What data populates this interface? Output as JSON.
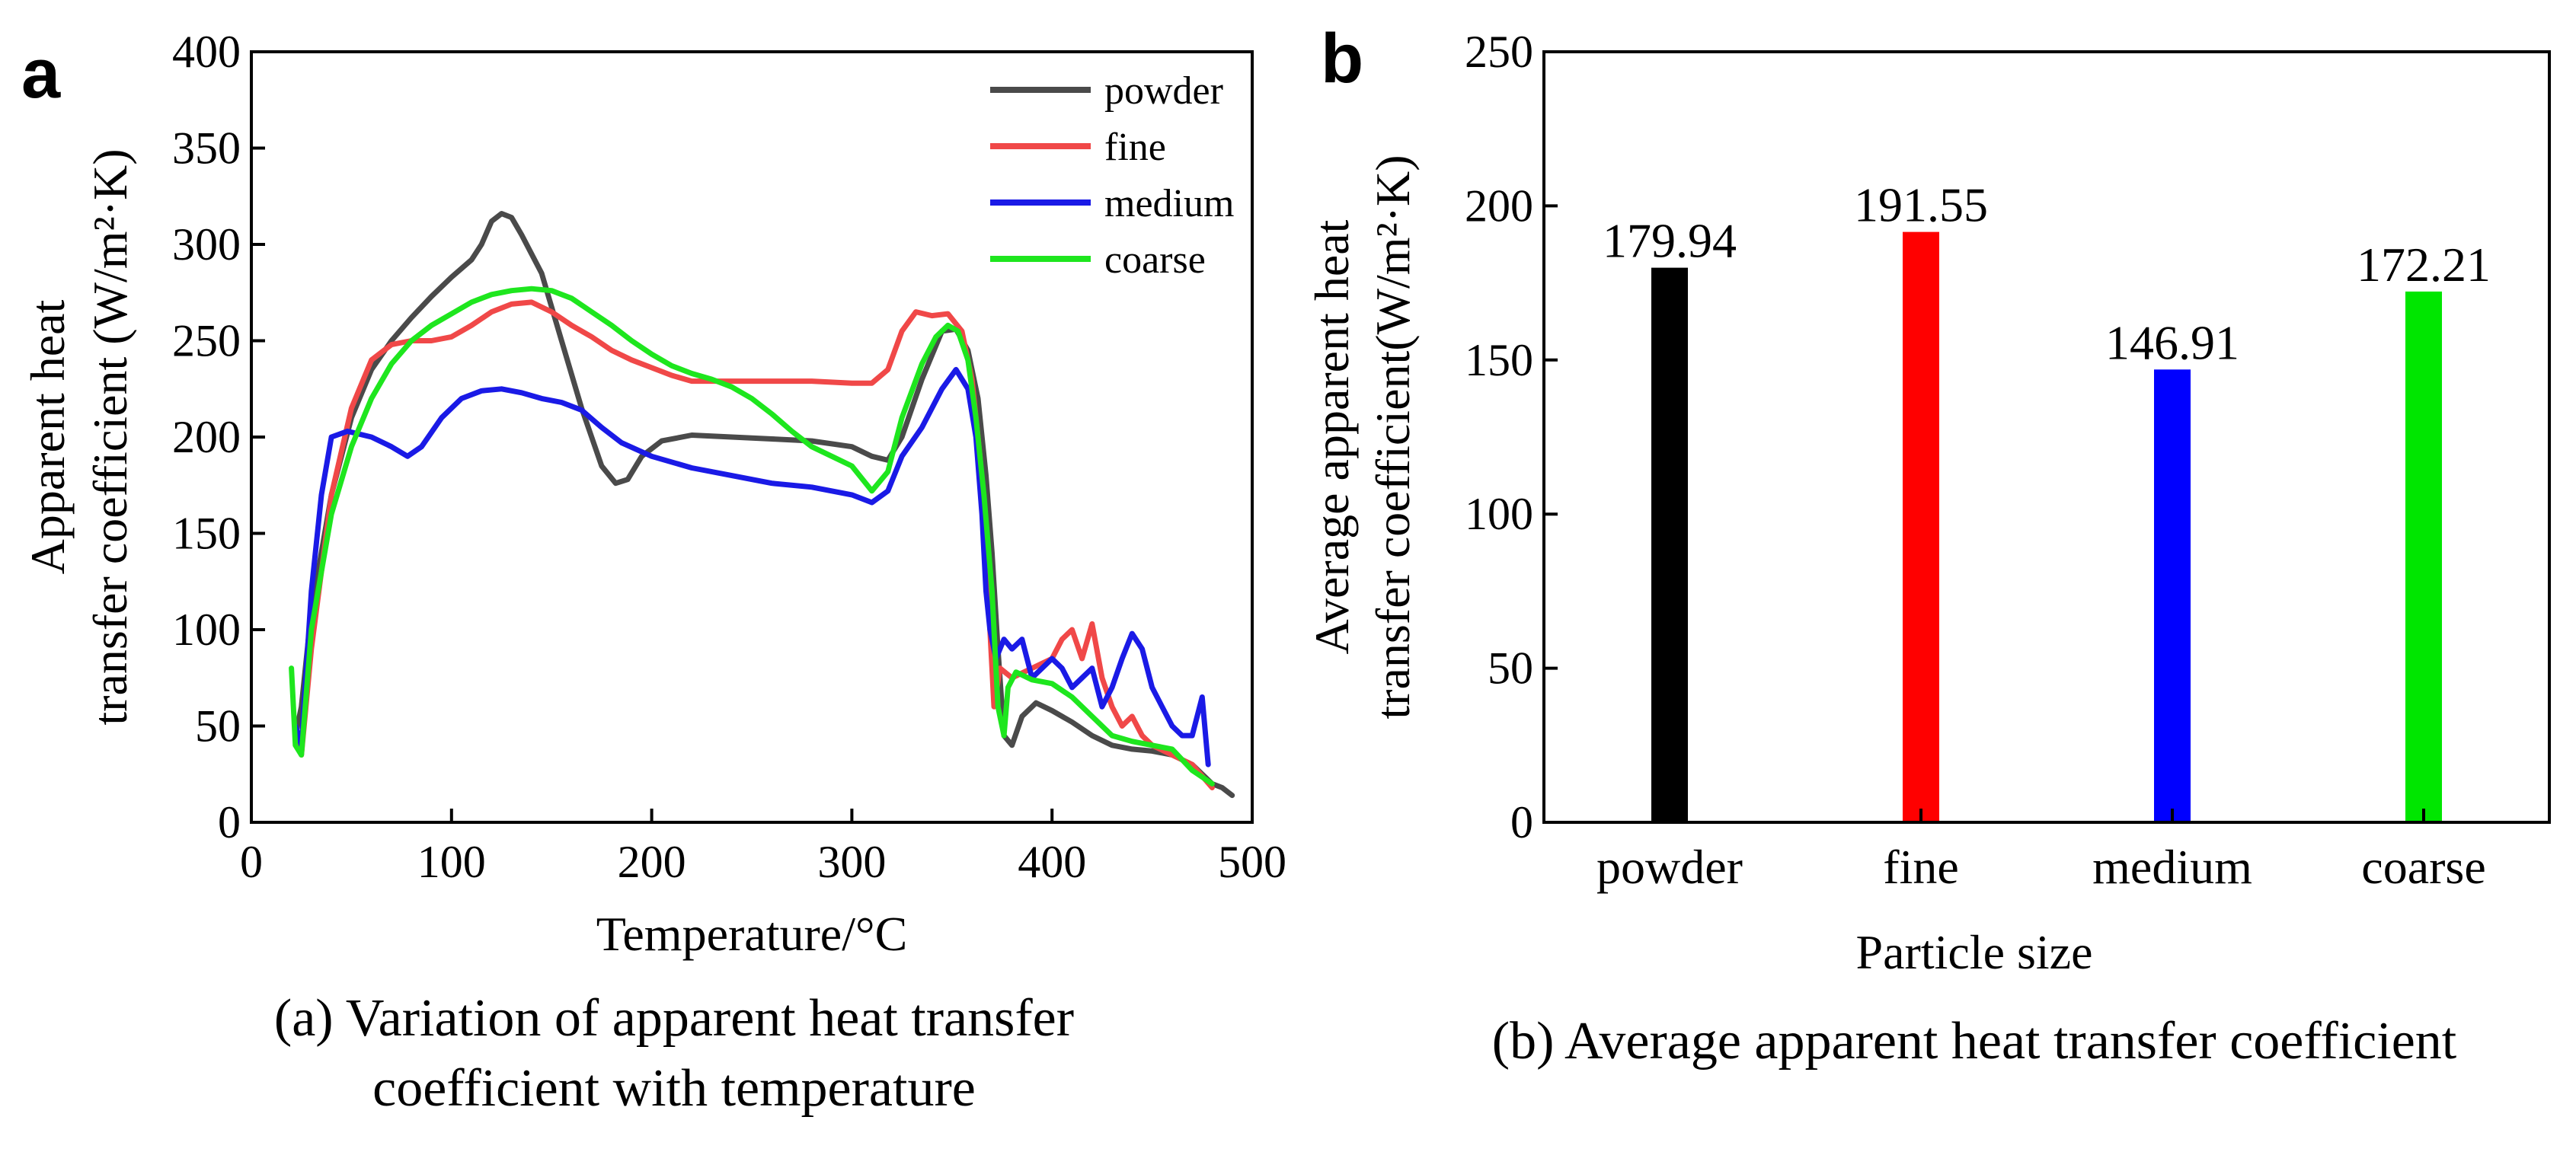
{
  "panel_labels": {
    "a": "a",
    "b": "b"
  },
  "captions": {
    "a_line1": "(a) Variation of apparent heat transfer",
    "a_line2": "coefficient with temperature",
    "b": "(b) Average apparent heat transfer coefficient"
  },
  "colors": {
    "powder": "#4a4a4a",
    "fine": "#f04848",
    "medium": "#1a1ae6",
    "coarse": "#1ee61e",
    "bar_powder": "#000000",
    "bar_fine": "#ff0000",
    "bar_medium": "#0000ff",
    "bar_coarse": "#00e600"
  },
  "chart_data": [
    {
      "type": "line",
      "title": "",
      "xlabel": "Temperature/°C",
      "ylabel_line1": "Apparent heat",
      "ylabel_line2": "transfer coefficient (W/m²·K)",
      "xlim": [
        0,
        500
      ],
      "ylim": [
        0,
        400
      ],
      "xticks": [
        0,
        100,
        200,
        300,
        400,
        500
      ],
      "yticks": [
        0,
        50,
        100,
        150,
        200,
        250,
        300,
        350,
        400
      ],
      "legend_position": "top-right",
      "series": [
        {
          "name": "powder",
          "points": [
            [
              22,
              45
            ],
            [
              25,
              60
            ],
            [
              30,
              110
            ],
            [
              40,
              170
            ],
            [
              50,
              210
            ],
            [
              60,
              235
            ],
            [
              70,
              250
            ],
            [
              80,
              262
            ],
            [
              90,
              273
            ],
            [
              100,
              283
            ],
            [
              110,
              292
            ],
            [
              115,
              300
            ],
            [
              120,
              312
            ],
            [
              125,
              316
            ],
            [
              130,
              314
            ],
            [
              135,
              305
            ],
            [
              145,
              285
            ],
            [
              155,
              250
            ],
            [
              165,
              215
            ],
            [
              175,
              185
            ],
            [
              182,
              176
            ],
            [
              188,
              178
            ],
            [
              195,
              190
            ],
            [
              205,
              198
            ],
            [
              220,
              201
            ],
            [
              240,
              200
            ],
            [
              260,
              199
            ],
            [
              280,
              198
            ],
            [
              300,
              195
            ],
            [
              310,
              190
            ],
            [
              318,
              188
            ],
            [
              325,
              200
            ],
            [
              335,
              230
            ],
            [
              345,
              255
            ],
            [
              352,
              256
            ],
            [
              358,
              245
            ],
            [
              363,
              220
            ],
            [
              367,
              180
            ],
            [
              370,
              140
            ],
            [
              373,
              90
            ],
            [
              376,
              45
            ],
            [
              380,
              40
            ],
            [
              385,
              55
            ],
            [
              392,
              62
            ],
            [
              400,
              58
            ],
            [
              410,
              52
            ],
            [
              420,
              45
            ],
            [
              430,
              40
            ],
            [
              440,
              38
            ],
            [
              450,
              37
            ],
            [
              460,
              35
            ],
            [
              470,
              30
            ],
            [
              480,
              20
            ],
            [
              485,
              18
            ],
            [
              490,
              14
            ]
          ]
        },
        {
          "name": "fine",
          "points": [
            [
              22,
              50
            ],
            [
              25,
              35
            ],
            [
              30,
              90
            ],
            [
              40,
              170
            ],
            [
              50,
              215
            ],
            [
              60,
              240
            ],
            [
              70,
              248
            ],
            [
              80,
              250
            ],
            [
              90,
              250
            ],
            [
              100,
              252
            ],
            [
              110,
              258
            ],
            [
              120,
              265
            ],
            [
              130,
              269
            ],
            [
              140,
              270
            ],
            [
              150,
              265
            ],
            [
              160,
              258
            ],
            [
              170,
              252
            ],
            [
              180,
              245
            ],
            [
              190,
              240
            ],
            [
              200,
              236
            ],
            [
              210,
              232
            ],
            [
              220,
              229
            ],
            [
              240,
              229
            ],
            [
              260,
              229
            ],
            [
              280,
              229
            ],
            [
              300,
              228
            ],
            [
              310,
              228
            ],
            [
              318,
              235
            ],
            [
              325,
              255
            ],
            [
              332,
              265
            ],
            [
              340,
              263
            ],
            [
              348,
              264
            ],
            [
              355,
              255
            ],
            [
              360,
              230
            ],
            [
              364,
              190
            ],
            [
              367,
              150
            ],
            [
              369,
              100
            ],
            [
              371,
              60
            ],
            [
              374,
              80
            ],
            [
              380,
              75
            ],
            [
              390,
              80
            ],
            [
              400,
              85
            ],
            [
              405,
              95
            ],
            [
              410,
              100
            ],
            [
              415,
              85
            ],
            [
              420,
              103
            ],
            [
              425,
              75
            ],
            [
              430,
              60
            ],
            [
              435,
              50
            ],
            [
              440,
              55
            ],
            [
              445,
              45
            ],
            [
              450,
              40
            ],
            [
              460,
              35
            ],
            [
              470,
              30
            ],
            [
              480,
              18
            ]
          ]
        },
        {
          "name": "medium",
          "points": [
            [
              22,
              50
            ],
            [
              25,
              40
            ],
            [
              30,
              120
            ],
            [
              35,
              170
            ],
            [
              40,
              200
            ],
            [
              48,
              203
            ],
            [
              60,
              200
            ],
            [
              70,
              195
            ],
            [
              78,
              190
            ],
            [
              85,
              195
            ],
            [
              95,
              210
            ],
            [
              105,
              220
            ],
            [
              115,
              224
            ],
            [
              125,
              225
            ],
            [
              135,
              223
            ],
            [
              145,
              220
            ],
            [
              155,
              218
            ],
            [
              165,
              214
            ],
            [
              175,
              205
            ],
            [
              185,
              197
            ],
            [
              200,
              190
            ],
            [
              220,
              184
            ],
            [
              240,
              180
            ],
            [
              260,
              176
            ],
            [
              280,
              174
            ],
            [
              300,
              170
            ],
            [
              310,
              166
            ],
            [
              318,
              172
            ],
            [
              325,
              190
            ],
            [
              335,
              205
            ],
            [
              345,
              225
            ],
            [
              352,
              235
            ],
            [
              358,
              225
            ],
            [
              362,
              200
            ],
            [
              365,
              160
            ],
            [
              367,
              120
            ],
            [
              369,
              100
            ],
            [
              372,
              85
            ],
            [
              376,
              95
            ],
            [
              380,
              90
            ],
            [
              385,
              95
            ],
            [
              390,
              75
            ],
            [
              395,
              80
            ],
            [
              400,
              85
            ],
            [
              405,
              80
            ],
            [
              410,
              70
            ],
            [
              415,
              75
            ],
            [
              420,
              80
            ],
            [
              425,
              60
            ],
            [
              430,
              70
            ],
            [
              435,
              85
            ],
            [
              440,
              98
            ],
            [
              445,
              90
            ],
            [
              450,
              70
            ],
            [
              455,
              60
            ],
            [
              460,
              50
            ],
            [
              465,
              45
            ],
            [
              470,
              45
            ],
            [
              475,
              65
            ],
            [
              478,
              30
            ]
          ]
        },
        {
          "name": "coarse",
          "points": [
            [
              20,
              80
            ],
            [
              22,
              40
            ],
            [
              25,
              35
            ],
            [
              30,
              100
            ],
            [
              40,
              160
            ],
            [
              50,
              195
            ],
            [
              60,
              220
            ],
            [
              70,
              238
            ],
            [
              80,
              250
            ],
            [
              90,
              258
            ],
            [
              100,
              264
            ],
            [
              110,
              270
            ],
            [
              120,
              274
            ],
            [
              130,
              276
            ],
            [
              140,
              277
            ],
            [
              150,
              276
            ],
            [
              160,
              272
            ],
            [
              170,
              265
            ],
            [
              180,
              258
            ],
            [
              190,
              250
            ],
            [
              200,
              243
            ],
            [
              210,
              237
            ],
            [
              220,
              233
            ],
            [
              230,
              230
            ],
            [
              240,
              226
            ],
            [
              250,
              220
            ],
            [
              260,
              212
            ],
            [
              270,
              203
            ],
            [
              280,
              195
            ],
            [
              290,
              190
            ],
            [
              300,
              185
            ],
            [
              310,
              172
            ],
            [
              318,
              182
            ],
            [
              325,
              210
            ],
            [
              335,
              238
            ],
            [
              342,
              252
            ],
            [
              348,
              258
            ],
            [
              353,
              255
            ],
            [
              358,
              240
            ],
            [
              362,
              210
            ],
            [
              366,
              170
            ],
            [
              370,
              120
            ],
            [
              373,
              60
            ],
            [
              376,
              45
            ],
            [
              378,
              70
            ],
            [
              382,
              78
            ],
            [
              390,
              74
            ],
            [
              400,
              72
            ],
            [
              410,
              65
            ],
            [
              420,
              55
            ],
            [
              430,
              45
            ],
            [
              440,
              42
            ],
            [
              450,
              40
            ],
            [
              460,
              38
            ],
            [
              470,
              27
            ],
            [
              480,
              20
            ]
          ]
        }
      ]
    },
    {
      "type": "bar",
      "title": "",
      "xlabel": "Particle size",
      "ylabel_line1": "Average apparent heat",
      "ylabel_line2": "transfer coefficient(W/m²·K)",
      "ylim": [
        0,
        250
      ],
      "yticks": [
        0,
        50,
        100,
        150,
        200,
        250
      ],
      "categories": [
        "powder",
        "fine",
        "medium",
        "coarse"
      ],
      "values": [
        179.94,
        191.55,
        146.91,
        172.21
      ],
      "value_labels": [
        "179.94",
        "191.55",
        "146.91",
        "172.21"
      ]
    }
  ]
}
